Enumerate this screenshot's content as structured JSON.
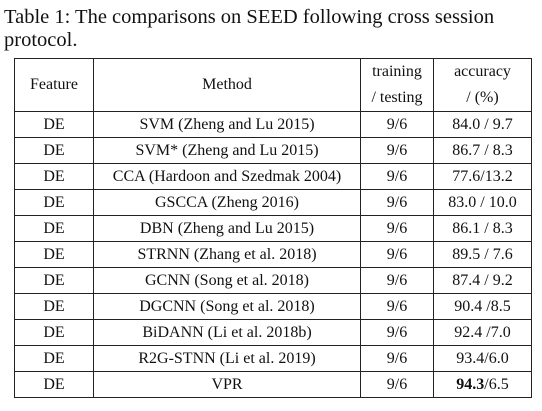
{
  "caption": "Table 1: The comparisons on SEED following cross session protocol.",
  "table": {
    "headers": {
      "feature": "Feature",
      "method": "Method",
      "training_line1": "training",
      "training_line2": "/ testing",
      "accuracy_line1": "accuracy",
      "accuracy_line2": "/ (%)"
    },
    "rows": [
      {
        "feature": "DE",
        "method": "SVM (Zheng and Lu 2015)",
        "split": "9/6",
        "acc_main": "84.0 / 9.7",
        "acc_rest": ""
      },
      {
        "feature": "DE",
        "method": "SVM* (Zheng and Lu 2015)",
        "split": "9/6",
        "acc_main": "86.7 / 8.3",
        "acc_rest": ""
      },
      {
        "feature": "DE",
        "method": "CCA (Hardoon and Szedmak 2004)",
        "split": "9/6",
        "acc_main": "77.6/13.2",
        "acc_rest": ""
      },
      {
        "feature": "DE",
        "method": "GSCCA (Zheng 2016)",
        "split": "9/6",
        "acc_main": "83.0 / 10.0",
        "acc_rest": ""
      },
      {
        "feature": "DE",
        "method": "DBN (Zheng and Lu 2015)",
        "split": "9/6",
        "acc_main": "86.1 / 8.3",
        "acc_rest": ""
      },
      {
        "feature": "DE",
        "method": "STRNN (Zhang et al. 2018)",
        "split": "9/6",
        "acc_main": "89.5 / 7.6",
        "acc_rest": ""
      },
      {
        "feature": "DE",
        "method": "GCNN (Song et al. 2018)",
        "split": "9/6",
        "acc_main": "87.4 / 9.2",
        "acc_rest": ""
      },
      {
        "feature": "DE",
        "method": "DGCNN (Song et al. 2018)",
        "split": "9/6",
        "acc_main": "90.4 /8.5",
        "acc_rest": ""
      },
      {
        "feature": "DE",
        "method": "BiDANN (Li et al. 2018b)",
        "split": "9/6",
        "acc_main": "92.4 /7.0",
        "acc_rest": ""
      },
      {
        "feature": "DE",
        "method": "R2G-STNN (Li et al. 2019)",
        "split": "9/6",
        "acc_main": "93.4/6.0",
        "acc_rest": ""
      },
      {
        "feature": "DE",
        "method": "VPR",
        "split": "9/6",
        "acc_main": "94.3",
        "acc_rest": "/6.5"
      }
    ]
  }
}
